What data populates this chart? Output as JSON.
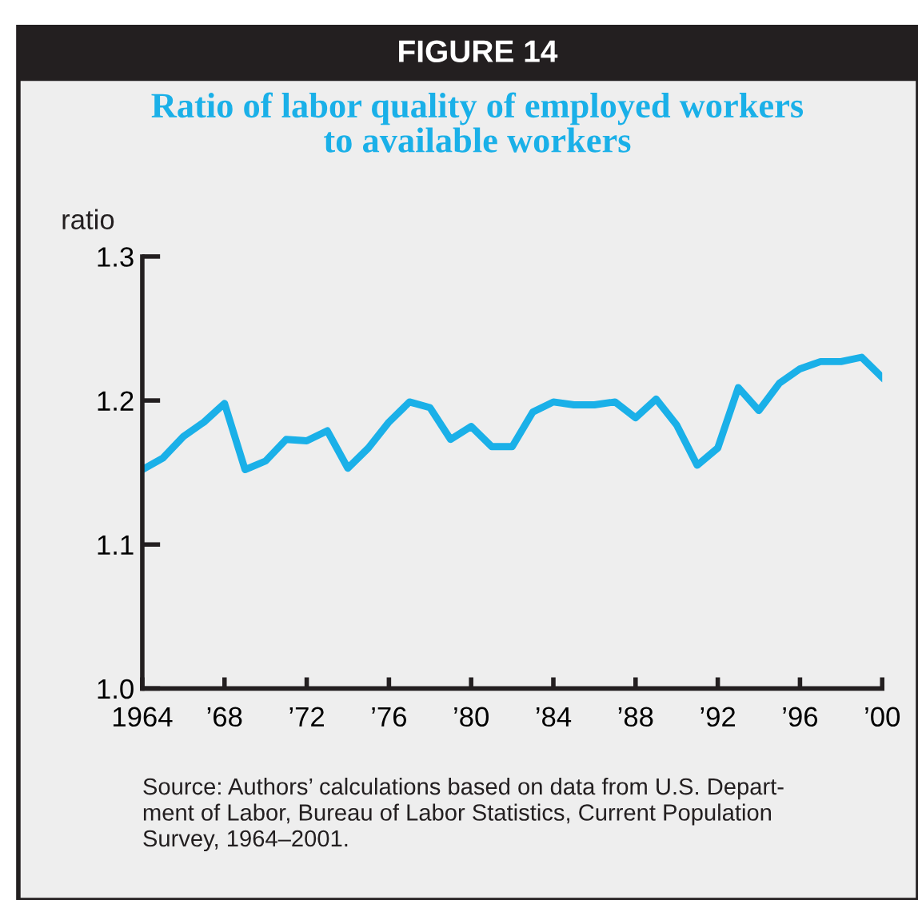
{
  "chart_data": {
    "type": "line",
    "title": "FIGURE 14",
    "subtitle": "Ratio of labor quality of employed workers\nto available workers",
    "ylabel": "ratio",
    "x": [
      1964,
      1965,
      1966,
      1967,
      1968,
      1969,
      1970,
      1971,
      1972,
      1973,
      1974,
      1975,
      1976,
      1977,
      1978,
      1979,
      1980,
      1981,
      1982,
      1983,
      1984,
      1985,
      1986,
      1987,
      1988,
      1989,
      1990,
      1991,
      1992,
      1993,
      1994,
      1995,
      1996,
      1997,
      1998,
      1999,
      2000
    ],
    "series": [
      {
        "color": "#1ab0e8",
        "values": [
          1.152,
          1.16,
          1.175,
          1.185,
          1.198,
          1.152,
          1.158,
          1.173,
          1.172,
          1.179,
          1.153,
          1.167,
          1.185,
          1.199,
          1.195,
          1.173,
          1.182,
          1.168,
          1.168,
          1.192,
          1.199,
          1.197,
          1.197,
          1.199,
          1.188,
          1.201,
          1.183,
          1.155,
          1.167,
          1.209,
          1.193,
          1.212,
          1.222,
          1.227,
          1.227,
          1.23,
          1.216
        ]
      }
    ],
    "xlim": [
      1964,
      2000
    ],
    "ylim": [
      1.0,
      1.3
    ],
    "xticks": [
      1964,
      {
        "value": 1968,
        "label": "’68"
      },
      {
        "value": 1972,
        "label": "’72"
      },
      {
        "value": 1976,
        "label": "’76"
      },
      {
        "value": 1980,
        "label": "’80"
      },
      {
        "value": 1984,
        "label": "’84"
      },
      {
        "value": 1988,
        "label": "’88"
      },
      {
        "value": 1992,
        "label": "’92"
      },
      {
        "value": 1996,
        "label": "’96"
      },
      {
        "value": 2000,
        "label": "’00"
      }
    ],
    "yticks": [
      {
        "value": 1.0,
        "label": "1.0"
      },
      1.1,
      1.2,
      1.3
    ],
    "grid": false,
    "legend": false,
    "marker": "none",
    "line_style": "solid",
    "annotations": [
      "Source: Authors’ calculations based on data from U.S. Depart-\nment of Labor, Bureau of Labor Statistics, Current Population\nSurvey, 1964–2001."
    ]
  }
}
